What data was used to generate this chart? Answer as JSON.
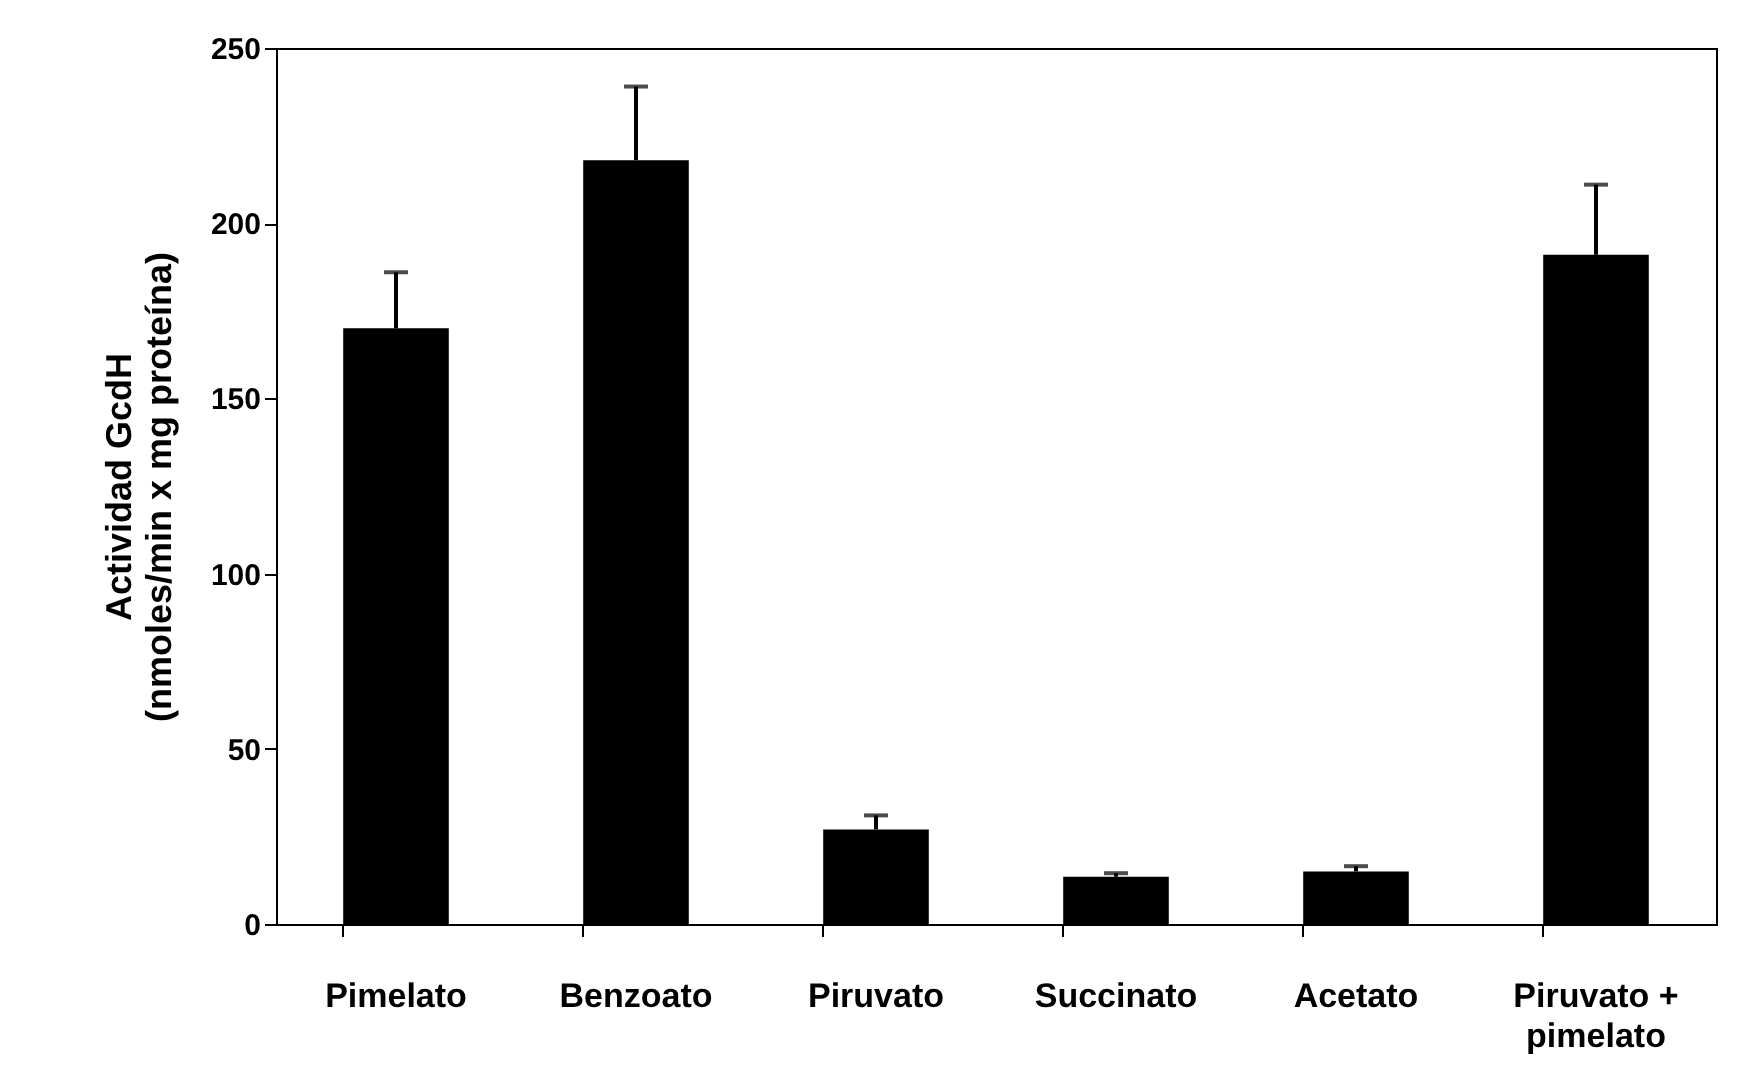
{
  "chart_data": {
    "type": "bar",
    "ylabel": "Actividad GcdH\n(nmoles/min x mg proteína)",
    "categories": [
      "Pimelato",
      "Benzoato",
      "Piruvato",
      "Succinato",
      "Acetato",
      "Piruvato + pimelato"
    ],
    "values": [
      170,
      218,
      27,
      13.5,
      15,
      191
    ],
    "color": "#000000",
    "errors": [
      [
        170,
        186
      ],
      [
        218,
        239
      ],
      [
        27,
        31
      ],
      [
        13.5,
        14.5
      ],
      [
        15,
        16.5
      ],
      [
        191,
        211
      ]
    ],
    "ylim": [
      0,
      250
    ],
    "yticks": [
      0,
      50,
      100,
      150,
      200,
      250
    ],
    "grid": false
  }
}
